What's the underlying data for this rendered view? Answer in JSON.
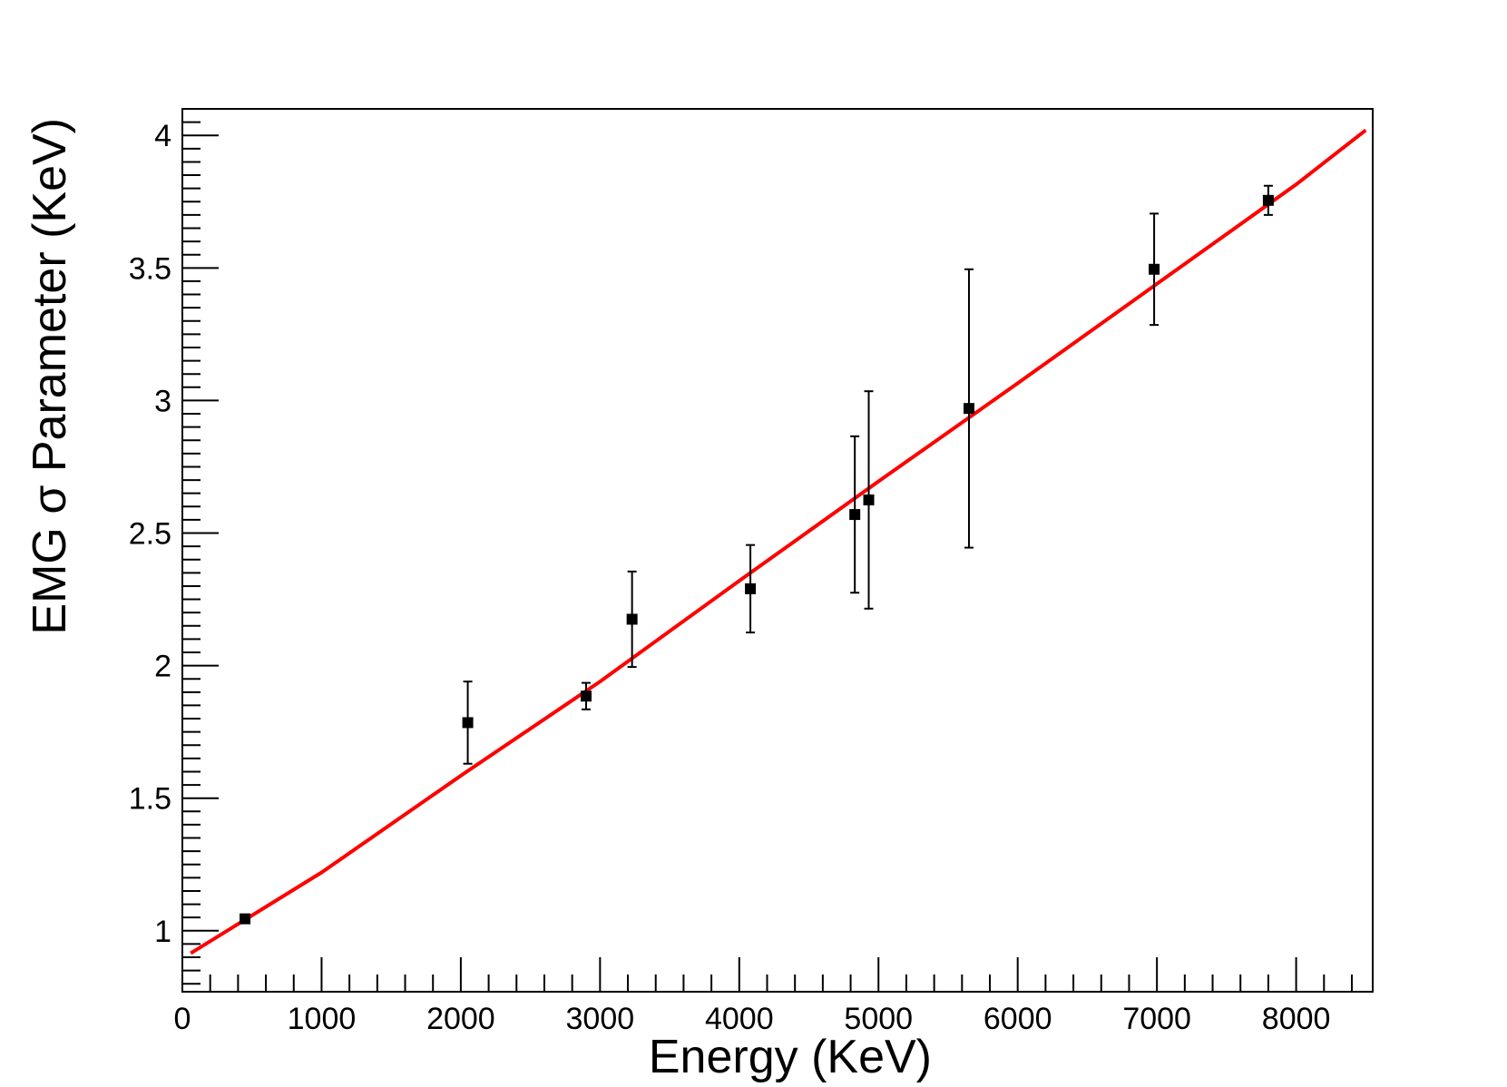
{
  "chart_data": {
    "type": "scatter",
    "title": "",
    "xlabel": "Energy (KeV)",
    "ylabel": "EMG σ Parameter (KeV)",
    "xlim": [
      0,
      8550
    ],
    "ylim": [
      0.77,
      4.1
    ],
    "x_ticks": [
      "0",
      "1000",
      "2000",
      "3000",
      "4000",
      "5000",
      "6000",
      "7000",
      "8000"
    ],
    "y_ticks": [
      "1",
      "1.5",
      "2",
      "2.5",
      "3",
      "3.5",
      "4"
    ],
    "grid": false,
    "legend": "none",
    "series": [
      {
        "kind": "points-with-error-bars",
        "marker": "square",
        "color": "#000000",
        "points": [
          {
            "x": 450,
            "y": 1.045,
            "err": 0.01
          },
          {
            "x": 2050,
            "y": 1.785,
            "err": 0.155
          },
          {
            "x": 2900,
            "y": 1.885,
            "err": 0.05
          },
          {
            "x": 3230,
            "y": 2.175,
            "err": 0.18
          },
          {
            "x": 4080,
            "y": 2.29,
            "err": 0.165
          },
          {
            "x": 4830,
            "y": 2.57,
            "err": 0.295
          },
          {
            "x": 4930,
            "y": 2.625,
            "err": 0.41
          },
          {
            "x": 5650,
            "y": 2.97,
            "err": 0.525
          },
          {
            "x": 6980,
            "y": 3.495,
            "err": 0.21
          },
          {
            "x": 7800,
            "y": 3.755,
            "err": 0.055
          }
        ]
      },
      {
        "kind": "fit-line",
        "color": "#ff0000",
        "x": [
          60,
          1000,
          2000,
          3000,
          4000,
          5000,
          6000,
          7000,
          8000,
          8500
        ],
        "y": [
          0.915,
          1.22,
          1.585,
          1.94,
          2.32,
          2.695,
          3.065,
          3.44,
          3.815,
          4.02
        ]
      }
    ]
  }
}
